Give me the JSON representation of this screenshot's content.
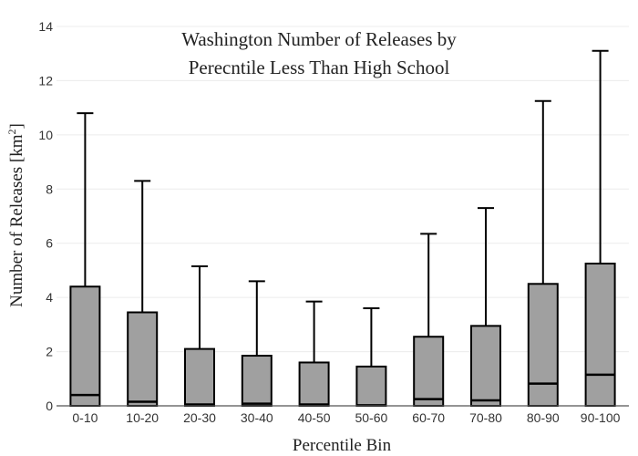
{
  "chart_data": {
    "type": "box",
    "title_lines": [
      "Washington Number of Releases by",
      "Perecntile Less Than High School"
    ],
    "xlabel": "Percentile Bin",
    "ylabel_main": "Number of Releases  [km",
    "ylabel_sup": "2",
    "ylabel_end": "]",
    "ylim": [
      0,
      14
    ],
    "y_ticks": [
      0,
      2,
      4,
      6,
      8,
      10,
      12,
      14
    ],
    "grid": true,
    "categories": [
      "0-10",
      "10-20",
      "20-30",
      "30-40",
      "40-50",
      "50-60",
      "60-70",
      "70-80",
      "80-90",
      "90-100"
    ],
    "boxes": [
      {
        "min": 0,
        "q1": 0,
        "median": 0.4,
        "q3": 4.4,
        "max": 10.8
      },
      {
        "min": 0,
        "q1": 0,
        "median": 0.15,
        "q3": 3.45,
        "max": 8.3
      },
      {
        "min": 0,
        "q1": 0,
        "median": 0.05,
        "q3": 2.1,
        "max": 5.15
      },
      {
        "min": 0,
        "q1": 0,
        "median": 0.08,
        "q3": 1.85,
        "max": 4.6
      },
      {
        "min": 0,
        "q1": 0,
        "median": 0.05,
        "q3": 1.6,
        "max": 3.85
      },
      {
        "min": 0,
        "q1": 0,
        "median": 0.02,
        "q3": 1.45,
        "max": 3.6
      },
      {
        "min": 0,
        "q1": 0,
        "median": 0.25,
        "q3": 2.55,
        "max": 6.35
      },
      {
        "min": 0,
        "q1": 0,
        "median": 0.2,
        "q3": 2.95,
        "max": 7.3
      },
      {
        "min": 0,
        "q1": 0,
        "median": 0.82,
        "q3": 4.5,
        "max": 11.25
      },
      {
        "min": 0,
        "q1": 0,
        "median": 1.15,
        "q3": 5.25,
        "max": 13.1
      }
    ],
    "colors": {
      "box_fill": "#a0a0a0",
      "box_stroke": "#000000"
    }
  }
}
